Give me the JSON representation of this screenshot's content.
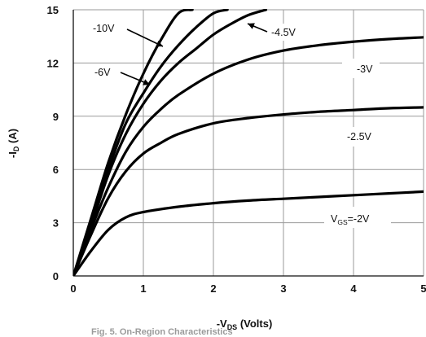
{
  "chart_data": {
    "type": "line",
    "title": "",
    "xlabel": {
      "main": "-V",
      "sub": "DS",
      "rest": " (Volts)"
    },
    "ylabel": {
      "main": "-I",
      "sub": "D",
      "rest": " (A)"
    },
    "xlim": [
      0,
      5
    ],
    "ylim": [
      0,
      15
    ],
    "xticks": [
      0,
      1,
      2,
      3,
      4,
      5
    ],
    "yticks": [
      0,
      3,
      6,
      9,
      12,
      15
    ],
    "grid": true,
    "series": [
      {
        "name": "-10V",
        "x": [
          0,
          0.25,
          0.5,
          0.75,
          1.0,
          1.25,
          1.5,
          1.7
        ],
        "y": [
          0,
          3.2,
          6.4,
          9.1,
          11.4,
          13.3,
          14.8,
          15.0
        ]
      },
      {
        "name": "-6V",
        "x": [
          0,
          0.25,
          0.5,
          0.75,
          1.0,
          1.25,
          1.5,
          1.75,
          2.0,
          2.2
        ],
        "y": [
          0,
          3.0,
          6.0,
          8.6,
          10.3,
          11.8,
          13.0,
          14.0,
          14.8,
          15.0
        ]
      },
      {
        "name": "-4.5V",
        "x": [
          0,
          0.25,
          0.5,
          0.75,
          1.0,
          1.25,
          1.5,
          1.75,
          2.0,
          2.25,
          2.5,
          2.75
        ],
        "y": [
          0,
          2.8,
          5.7,
          8.0,
          9.7,
          11.0,
          12.0,
          12.8,
          13.6,
          14.2,
          14.7,
          15.0
        ]
      },
      {
        "name": "-3V",
        "x": [
          0,
          0.25,
          0.5,
          0.75,
          1.0,
          1.25,
          1.5,
          2.0,
          2.5,
          3.0,
          3.5,
          4.0,
          4.5,
          5.0
        ],
        "y": [
          0,
          2.6,
          5.0,
          7.0,
          8.4,
          9.4,
          10.2,
          11.4,
          12.2,
          12.7,
          13.0,
          13.2,
          13.35,
          13.45
        ]
      },
      {
        "name": "-2.5V",
        "x": [
          0,
          0.25,
          0.5,
          0.75,
          1.0,
          1.25,
          1.5,
          2.0,
          2.5,
          3.0,
          3.5,
          4.0,
          4.5,
          5.0
        ],
        "y": [
          0,
          2.3,
          4.4,
          5.9,
          6.9,
          7.5,
          8.0,
          8.6,
          8.9,
          9.1,
          9.25,
          9.35,
          9.45,
          9.5
        ]
      },
      {
        "name": "VGS=-2V",
        "x": [
          0,
          0.25,
          0.5,
          0.75,
          1.0,
          1.5,
          2.0,
          2.5,
          3.0,
          3.5,
          4.0,
          4.5,
          5.0
        ],
        "y": [
          0,
          1.4,
          2.6,
          3.3,
          3.6,
          3.9,
          4.1,
          4.25,
          4.35,
          4.45,
          4.55,
          4.65,
          4.75
        ]
      }
    ],
    "annotations": [
      {
        "series": 0,
        "text": "-10V"
      },
      {
        "series": 1,
        "text": "-6V"
      },
      {
        "series": 2,
        "text": "-4.5V"
      },
      {
        "series": 3,
        "text": "-3V"
      },
      {
        "series": 4,
        "text": "-2.5V"
      },
      {
        "series": 5,
        "text": {
          "main": "V",
          "sub": "GS",
          "rest": "=-2V"
        }
      }
    ]
  },
  "caption": "Fig. 5. On-Region Characteristics"
}
